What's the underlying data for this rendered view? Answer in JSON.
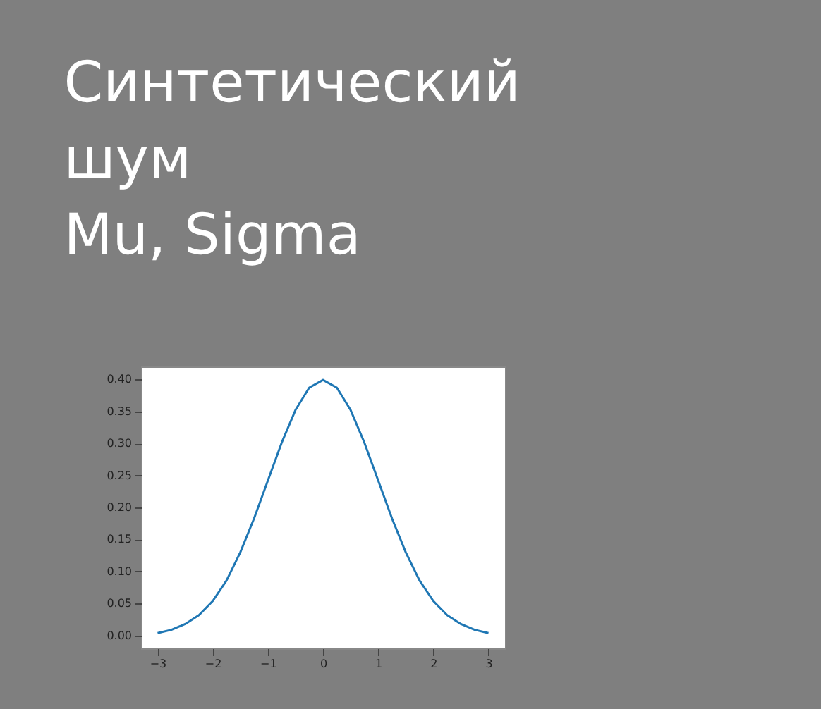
{
  "chart_data": {
    "type": "line",
    "title": "Синтетический\nшум\nMu, Sigma",
    "x": [
      -3,
      -2.75,
      -2.5,
      -2.25,
      -2,
      -1.75,
      -1.5,
      -1.25,
      -1,
      -0.75,
      -0.5,
      -0.25,
      0,
      0.25,
      0.5,
      0.75,
      1,
      1.25,
      1.5,
      1.75,
      2,
      2.25,
      2.5,
      2.75,
      3
    ],
    "series": [
      {
        "color": "#1f77b4",
        "values": [
          0.004,
          0.009,
          0.018,
          0.032,
          0.054,
          0.086,
          0.13,
          0.183,
          0.242,
          0.301,
          0.352,
          0.387,
          0.399,
          0.387,
          0.352,
          0.301,
          0.242,
          0.183,
          0.13,
          0.086,
          0.054,
          0.032,
          0.018,
          0.009,
          0.004
        ]
      }
    ],
    "xlim": [
      -3.3,
      3.3
    ],
    "ylim": [
      -0.02,
      0.42
    ],
    "xticks": [
      -3,
      -2,
      -1,
      0,
      1,
      2,
      3
    ],
    "yticks": [
      {
        "value": 0,
        "label": "0.00"
      },
      {
        "value": 0.05,
        "label": "0.05"
      },
      {
        "value": 0.1,
        "label": "0.10"
      },
      {
        "value": 0.15,
        "label": "0.15"
      },
      {
        "value": 0.2,
        "label": "0.20"
      },
      {
        "value": 0.25,
        "label": "0.25"
      },
      {
        "value": 0.3,
        "label": "0.30"
      },
      {
        "value": 0.35,
        "label": "0.35"
      },
      {
        "value": 0.4,
        "label": "0.40"
      }
    ],
    "grid": false,
    "marker": "none",
    "line_style": "solid"
  }
}
